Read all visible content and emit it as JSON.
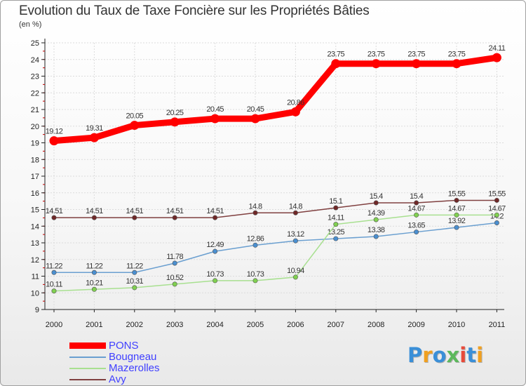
{
  "title": "Evolution du Taux de Taxe Foncière sur les Propriétés Bâties",
  "unit_label": "(en %)",
  "logo": {
    "letters": [
      "P",
      "r",
      "o",
      "x",
      "i",
      "t",
      "i"
    ],
    "colors": [
      "#3a8fd8",
      "#f0a020",
      "#3a8fd8",
      "#5cb85c",
      "#e84a3a",
      "#3a8fd8",
      "#f0a020"
    ]
  },
  "chart_data": {
    "type": "line",
    "title": "Evolution du Taux de Taxe Foncière sur les Propriétés Bâties",
    "ylabel": "(en %)",
    "xlabel": "",
    "x": [
      "2000",
      "2001",
      "2002",
      "2003",
      "2004",
      "2005",
      "2006",
      "2007",
      "2008",
      "2009",
      "2010",
      "2011"
    ],
    "ylim": [
      9,
      25
    ],
    "yticks": [
      "9",
      "10",
      "11",
      "12",
      "13",
      "14",
      "15",
      "16",
      "17",
      "18",
      "19",
      "20",
      "21",
      "22",
      "23",
      "24",
      "25"
    ],
    "legend_position": "bottom-left",
    "series": [
      {
        "name": "PONS",
        "color": "#ff0000",
        "bold": true,
        "values": [
          19.12,
          19.31,
          20.05,
          20.25,
          20.45,
          20.45,
          20.86,
          23.75,
          23.75,
          23.75,
          23.75,
          24.11
        ],
        "labels": [
          "19.12",
          "19.31",
          "20.05",
          "20.25",
          "20.45",
          "20.45",
          "20.86",
          "23.75",
          "23.75",
          "23.75",
          "23.75",
          "24.11"
        ]
      },
      {
        "name": "Bougneau",
        "color": "#6a9fd0",
        "dot": "#4a8fd0",
        "values": [
          11.22,
          11.22,
          11.22,
          11.78,
          12.49,
          12.86,
          13.12,
          13.25,
          13.38,
          13.65,
          13.92,
          14.2
        ],
        "labels": [
          "11.22",
          "11.22",
          "11.22",
          "11.78",
          "12.49",
          "12.86",
          "13.12",
          "13.25",
          "13.38",
          "13.65",
          "13.92",
          "14.2"
        ]
      },
      {
        "name": "Mazerolles",
        "color": "#a8e090",
        "dot": "#80d050",
        "values": [
          10.11,
          10.21,
          10.31,
          10.52,
          10.73,
          10.73,
          10.94,
          14.11,
          14.39,
          14.67,
          14.67,
          14.67
        ],
        "labels": [
          "10.11",
          "10.21",
          "10.31",
          "10.52",
          "10.73",
          "10.73",
          "10.94",
          "14.11",
          "14.39",
          "14.67",
          "14.67",
          "14.67"
        ]
      },
      {
        "name": "Avy",
        "color": "#804040",
        "dot": "#702828",
        "values": [
          14.51,
          14.51,
          14.51,
          14.51,
          14.51,
          14.8,
          14.8,
          15.1,
          15.4,
          15.4,
          15.55,
          15.55
        ],
        "labels": [
          "14.51",
          "14.51",
          "14.51",
          "14.51",
          "14.51",
          "14.8",
          "14.8",
          "15.1",
          "15.4",
          "15.4",
          "15.55",
          "15.55"
        ]
      }
    ]
  }
}
